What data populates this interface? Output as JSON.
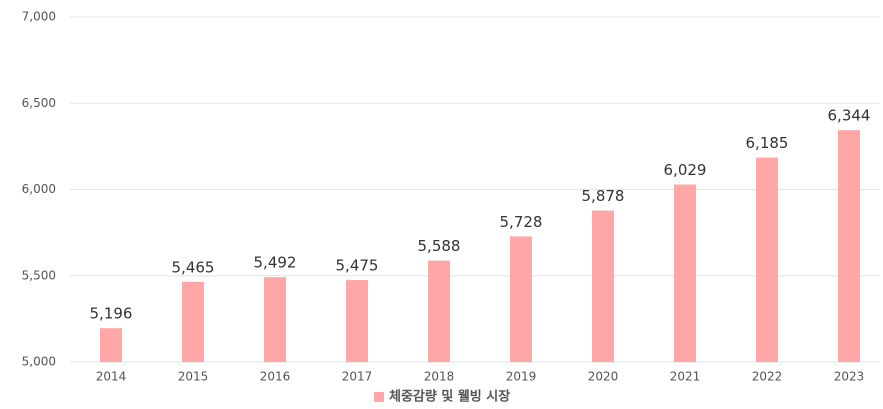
{
  "chart_data": {
    "type": "bar",
    "categories": [
      "2014",
      "2015",
      "2016",
      "2017",
      "2018",
      "2019",
      "2020",
      "2021",
      "2022",
      "2023"
    ],
    "series": [
      {
        "name": "체중감량 및 웰빙 시장",
        "color": "#ffa7a7",
        "values": [
          5196,
          5465,
          5492,
          5475,
          5588,
          5728,
          5878,
          6029,
          6185,
          6344
        ],
        "value_labels": [
          "5,196",
          "5,465",
          "5,492",
          "5,475",
          "5,588",
          "5,728",
          "5,878",
          "6,029",
          "6,185",
          "6,344"
        ]
      }
    ],
    "ylim": [
      5000,
      7000
    ],
    "yticks": [
      {
        "value": 5000,
        "label": "5,000"
      },
      {
        "value": 5500,
        "label": "5,500"
      },
      {
        "value": 6000,
        "label": "6,000"
      },
      {
        "value": 6500,
        "label": "6,500"
      },
      {
        "value": 7000,
        "label": "7,000"
      }
    ],
    "grid": true,
    "legend": "bottom"
  }
}
